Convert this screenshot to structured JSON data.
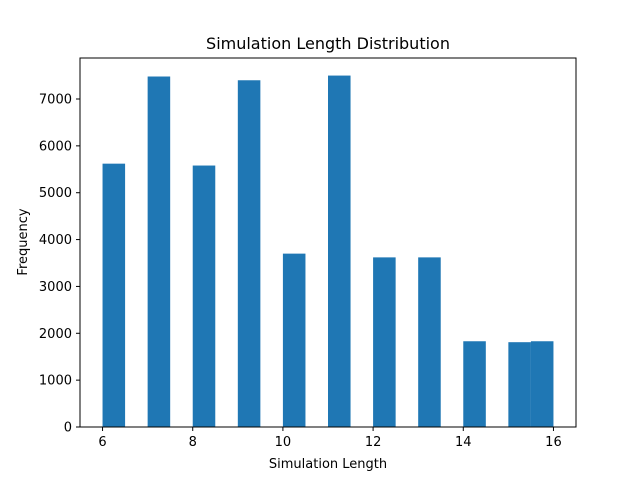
{
  "chart_data": {
    "type": "bar",
    "title": "Simulation Length Distribution",
    "xlabel": "Simulation Length",
    "ylabel": "Frequency",
    "xlim": [
      5.5,
      16.5
    ],
    "ylim": [
      0,
      7875
    ],
    "xticks": [
      6,
      8,
      10,
      12,
      14,
      16
    ],
    "yticks": [
      0,
      1000,
      2000,
      3000,
      4000,
      5000,
      6000,
      7000
    ],
    "bin_width": 0.5,
    "bins": [
      {
        "start": 6.0,
        "value": 5620
      },
      {
        "start": 7.0,
        "value": 7480
      },
      {
        "start": 8.0,
        "value": 5580
      },
      {
        "start": 9.0,
        "value": 7400
      },
      {
        "start": 10.0,
        "value": 3700
      },
      {
        "start": 11.0,
        "value": 7500
      },
      {
        "start": 12.0,
        "value": 3620
      },
      {
        "start": 13.0,
        "value": 3620
      },
      {
        "start": 14.0,
        "value": 1830
      },
      {
        "start": 15.0,
        "value": 1810
      },
      {
        "start": 15.5,
        "value": 1830
      }
    ],
    "color": "#1f77b4",
    "grid": false,
    "legend": false
  }
}
